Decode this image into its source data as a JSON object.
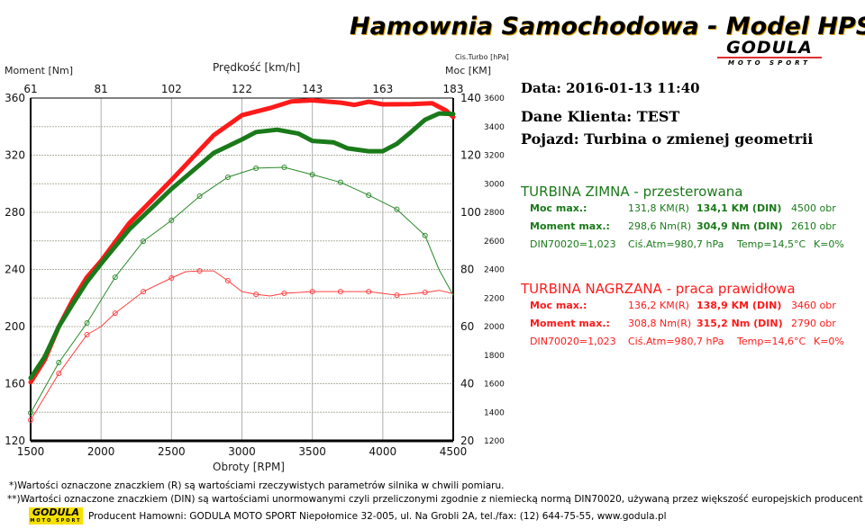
{
  "header": {
    "title": "Hamownia Samochodowa   -   Model HPS-C",
    "logo_text": "GODULA",
    "logo_sub": "MOTO SPORT"
  },
  "info": {
    "date": "Data: 2016-01-13  11:40",
    "client": "Dane Klienta: TEST",
    "vehicle": "Pojazd: Turbina o zmienej geometrii"
  },
  "runs": [
    {
      "title": "TURBINA ZIMNA -  przesterowana",
      "color": "#1a7a1a",
      "power_label": "Moc max.:",
      "power_r": "131,8 KM(R)",
      "power_din": "134,1 KM (DIN)",
      "power_rpm": "4500 obr",
      "torque_label": "Moment max.:",
      "torque_r": "298,6 Nm(R)",
      "torque_din": "304,9 Nm (DIN)",
      "torque_rpm": "2610 obr",
      "din": "DIN70020=1,023",
      "atm": "Ciś.Atm=980,7 hPa",
      "temp": "Temp=14,5°C",
      "k": "K=0%"
    },
    {
      "title": "TURBINA NAGRZANA - praca prawidłowa",
      "color": "#ff1a1a",
      "power_label": "Moc max.:",
      "power_r": "136,2 KM(R)",
      "power_din": "138,9 KM (DIN)",
      "power_rpm": "3460 obr",
      "torque_label": "Moment max.:",
      "torque_r": "308,8 Nm(R)",
      "torque_din": "315,2 Nm (DIN)",
      "torque_rpm": "2790 obr",
      "din": "DIN70020=1,023",
      "atm": "Ciś.Atm=980,7 hPa",
      "temp": "Temp=14,6°C",
      "k": "K=0%"
    }
  ],
  "footer": {
    "note1": "*)Wartości oznaczone znaczkiem (R) są wartościami rzeczywistych parametrów silnika w chwili pomiaru.",
    "note2": "**)Wartości oznaczone znaczkiem (DIN) są wartościami unormowanymi czyli przeliczonymi zgodnie z niemiecką normą DIN70020, używaną przez większość europejskich producent",
    "producer": "Producent Hamowni: GODULA MOTO SPORT Niepołomice 32-005, ul. Na Grobli 2A, tel./fax: (12) 644-75-55, www.godula.pl",
    "logo_text": "GODULA",
    "logo_sub": "MOTO SPORT"
  },
  "chart_data": {
    "type": "line",
    "xlabel": "Obroty [RPM]",
    "x_ticks": [
      "1500",
      "2000",
      "2500",
      "3000",
      "3500",
      "4000",
      "4500"
    ],
    "xlim": [
      1500,
      4500
    ],
    "top_axis_label": "Prędkość [km/h]",
    "top_ticks": [
      "61",
      "81",
      "102",
      "122",
      "143",
      "163",
      "183"
    ],
    "ylabel_left": "Moment [Nm]",
    "ylim_left": [
      120,
      360
    ],
    "left_ticks": [
      "120",
      "160",
      "200",
      "240",
      "280",
      "320",
      "360"
    ],
    "ylabel_right": "Moc [KM]",
    "ylim_right": [
      20,
      140
    ],
    "right_ticks": [
      "20",
      "40",
      "60",
      "80",
      "100",
      "120",
      "140"
    ],
    "ylabel_right2": "Cis.Turbo [hPa]",
    "ylim_right2": [
      1200,
      3600
    ],
    "right2_ticks": [
      "1200",
      "1400",
      "1600",
      "1800",
      "2000",
      "2200",
      "2400",
      "2600",
      "2800",
      "3000",
      "3200",
      "3400",
      "3600"
    ],
    "grid": true,
    "series": [
      {
        "kind": "power",
        "axis": "right",
        "color": "#ff1a1a",
        "points": [
          [
            1500,
            40.5
          ],
          [
            1600,
            48.3
          ],
          [
            1700,
            60
          ],
          [
            1800,
            69.4
          ],
          [
            1900,
            77.3
          ],
          [
            2000,
            83
          ],
          [
            2200,
            96.2
          ],
          [
            2500,
            111.3
          ],
          [
            2800,
            127
          ],
          [
            3000,
            134
          ],
          [
            3200,
            136.5
          ],
          [
            3350,
            138.8
          ],
          [
            3500,
            139.2
          ],
          [
            3700,
            138.4
          ],
          [
            3800,
            137.6
          ],
          [
            3900,
            138.7
          ],
          [
            4000,
            137.8
          ],
          [
            4200,
            137.9
          ],
          [
            4350,
            138.2
          ],
          [
            4450,
            135.6
          ],
          [
            4500,
            133.4
          ]
        ]
      },
      {
        "kind": "power",
        "axis": "right",
        "color": "#1a7a1a",
        "points": [
          [
            1500,
            42
          ],
          [
            1600,
            49.4
          ],
          [
            1700,
            60
          ],
          [
            1800,
            68
          ],
          [
            1900,
            75.7
          ],
          [
            2000,
            82
          ],
          [
            2200,
            94
          ],
          [
            2500,
            108.2
          ],
          [
            2800,
            120.8
          ],
          [
            3000,
            125.5
          ],
          [
            3100,
            128.1
          ],
          [
            3250,
            128.9
          ],
          [
            3400,
            127.6
          ],
          [
            3500,
            125
          ],
          [
            3650,
            124.5
          ],
          [
            3750,
            122.4
          ],
          [
            3900,
            121.4
          ],
          [
            4000,
            121.4
          ],
          [
            4100,
            124
          ],
          [
            4200,
            128.1
          ],
          [
            4300,
            132.4
          ],
          [
            4400,
            134.6
          ],
          [
            4500,
            134.4
          ]
        ]
      },
      {
        "kind": "turbo",
        "axis": "right2",
        "color": "#ff4040",
        "points": [
          [
            1500,
            1345
          ],
          [
            1700,
            1672
          ],
          [
            1900,
            1943
          ],
          [
            2000,
            2000
          ],
          [
            2100,
            2094
          ],
          [
            2300,
            2245
          ],
          [
            2500,
            2340
          ],
          [
            2600,
            2384
          ],
          [
            2700,
            2390
          ],
          [
            2800,
            2390
          ],
          [
            2900,
            2321
          ],
          [
            3000,
            2245
          ],
          [
            3100,
            2226
          ],
          [
            3200,
            2214
          ],
          [
            3300,
            2233
          ],
          [
            3500,
            2245
          ],
          [
            3700,
            2245
          ],
          [
            3900,
            2245
          ],
          [
            4100,
            2220
          ],
          [
            4300,
            2239
          ],
          [
            4400,
            2254
          ],
          [
            4500,
            2230
          ]
        ]
      },
      {
        "kind": "turbo",
        "axis": "right2",
        "color": "#2a8a2a",
        "points": [
          [
            1500,
            1395
          ],
          [
            1700,
            1748
          ],
          [
            1900,
            2025
          ],
          [
            2100,
            2346
          ],
          [
            2300,
            2598
          ],
          [
            2500,
            2743
          ],
          [
            2700,
            2913
          ],
          [
            2900,
            3046
          ],
          [
            3100,
            3109
          ],
          [
            3300,
            3115
          ],
          [
            3500,
            3064
          ],
          [
            3700,
            3010
          ],
          [
            3900,
            2920
          ],
          [
            4100,
            2821
          ],
          [
            4300,
            2638
          ],
          [
            4400,
            2397
          ],
          [
            4500,
            2220
          ]
        ]
      }
    ]
  }
}
